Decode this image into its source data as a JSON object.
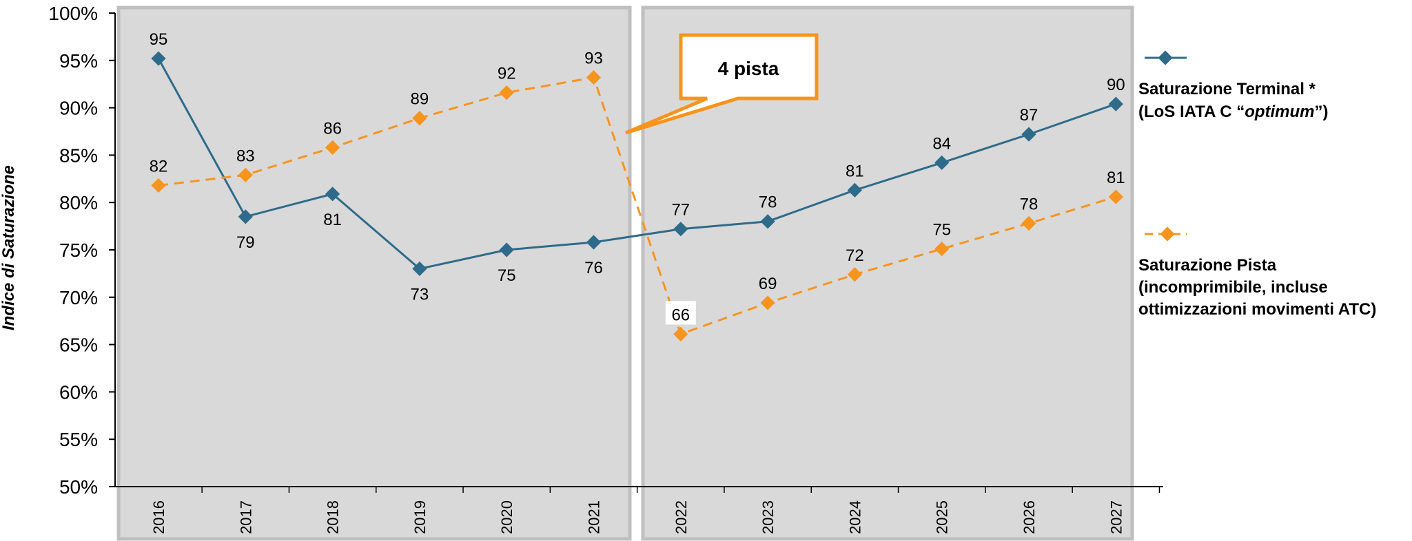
{
  "chart_data": {
    "type": "line",
    "ylabel": "Indice di Saturazione",
    "y_ticks": [
      "50%",
      "55%",
      "60%",
      "65%",
      "70%",
      "75%",
      "80%",
      "85%",
      "90%",
      "95%",
      "100%"
    ],
    "ylim": [
      50,
      100
    ],
    "grid": false,
    "categories": [
      "2016",
      "2017",
      "2018",
      "2019",
      "2020",
      "2021",
      "2022",
      "2023",
      "2024",
      "2025",
      "2026",
      "2027"
    ],
    "legend_position": "right",
    "series": [
      {
        "name_line1": "Saturazione Terminal *",
        "name_line2_pre": "(LoS IATA C “",
        "name_line2_italic": "optimum",
        "name_line2_post": "”)",
        "color": "#2e6b8a",
        "dashed": false,
        "values": [
          95.2,
          78.5,
          80.9,
          73.0,
          75.0,
          75.8,
          77.2,
          78.0,
          81.3,
          84.2,
          87.2,
          90.4
        ],
        "labels": [
          "95",
          "79",
          "81",
          "73",
          "75",
          "76",
          "77",
          "78",
          "81",
          "84",
          "87",
          "90"
        ],
        "label_position": [
          "above",
          "below",
          "below",
          "below",
          "below",
          "below",
          "above",
          "above",
          "above",
          "above",
          "above",
          "above"
        ]
      },
      {
        "name_line1": "Saturazione Pista",
        "name_line2": "(incomprimibile, incluse",
        "name_line3": "ottimizzazioni movimenti ATC)",
        "color": "#f7941d",
        "dashed": true,
        "values": [
          81.8,
          82.9,
          85.8,
          88.9,
          91.6,
          93.2,
          66.1,
          69.4,
          72.4,
          75.1,
          77.8,
          80.6
        ],
        "labels": [
          "82",
          "83",
          "86",
          "89",
          "92",
          "93",
          "66",
          "69",
          "72",
          "75",
          "78",
          "81"
        ],
        "label_position": [
          "above",
          "above",
          "above",
          "above",
          "above",
          "above",
          "above",
          "above",
          "above",
          "above",
          "above",
          "above"
        ]
      }
    ],
    "annotation": "4 pista"
  }
}
